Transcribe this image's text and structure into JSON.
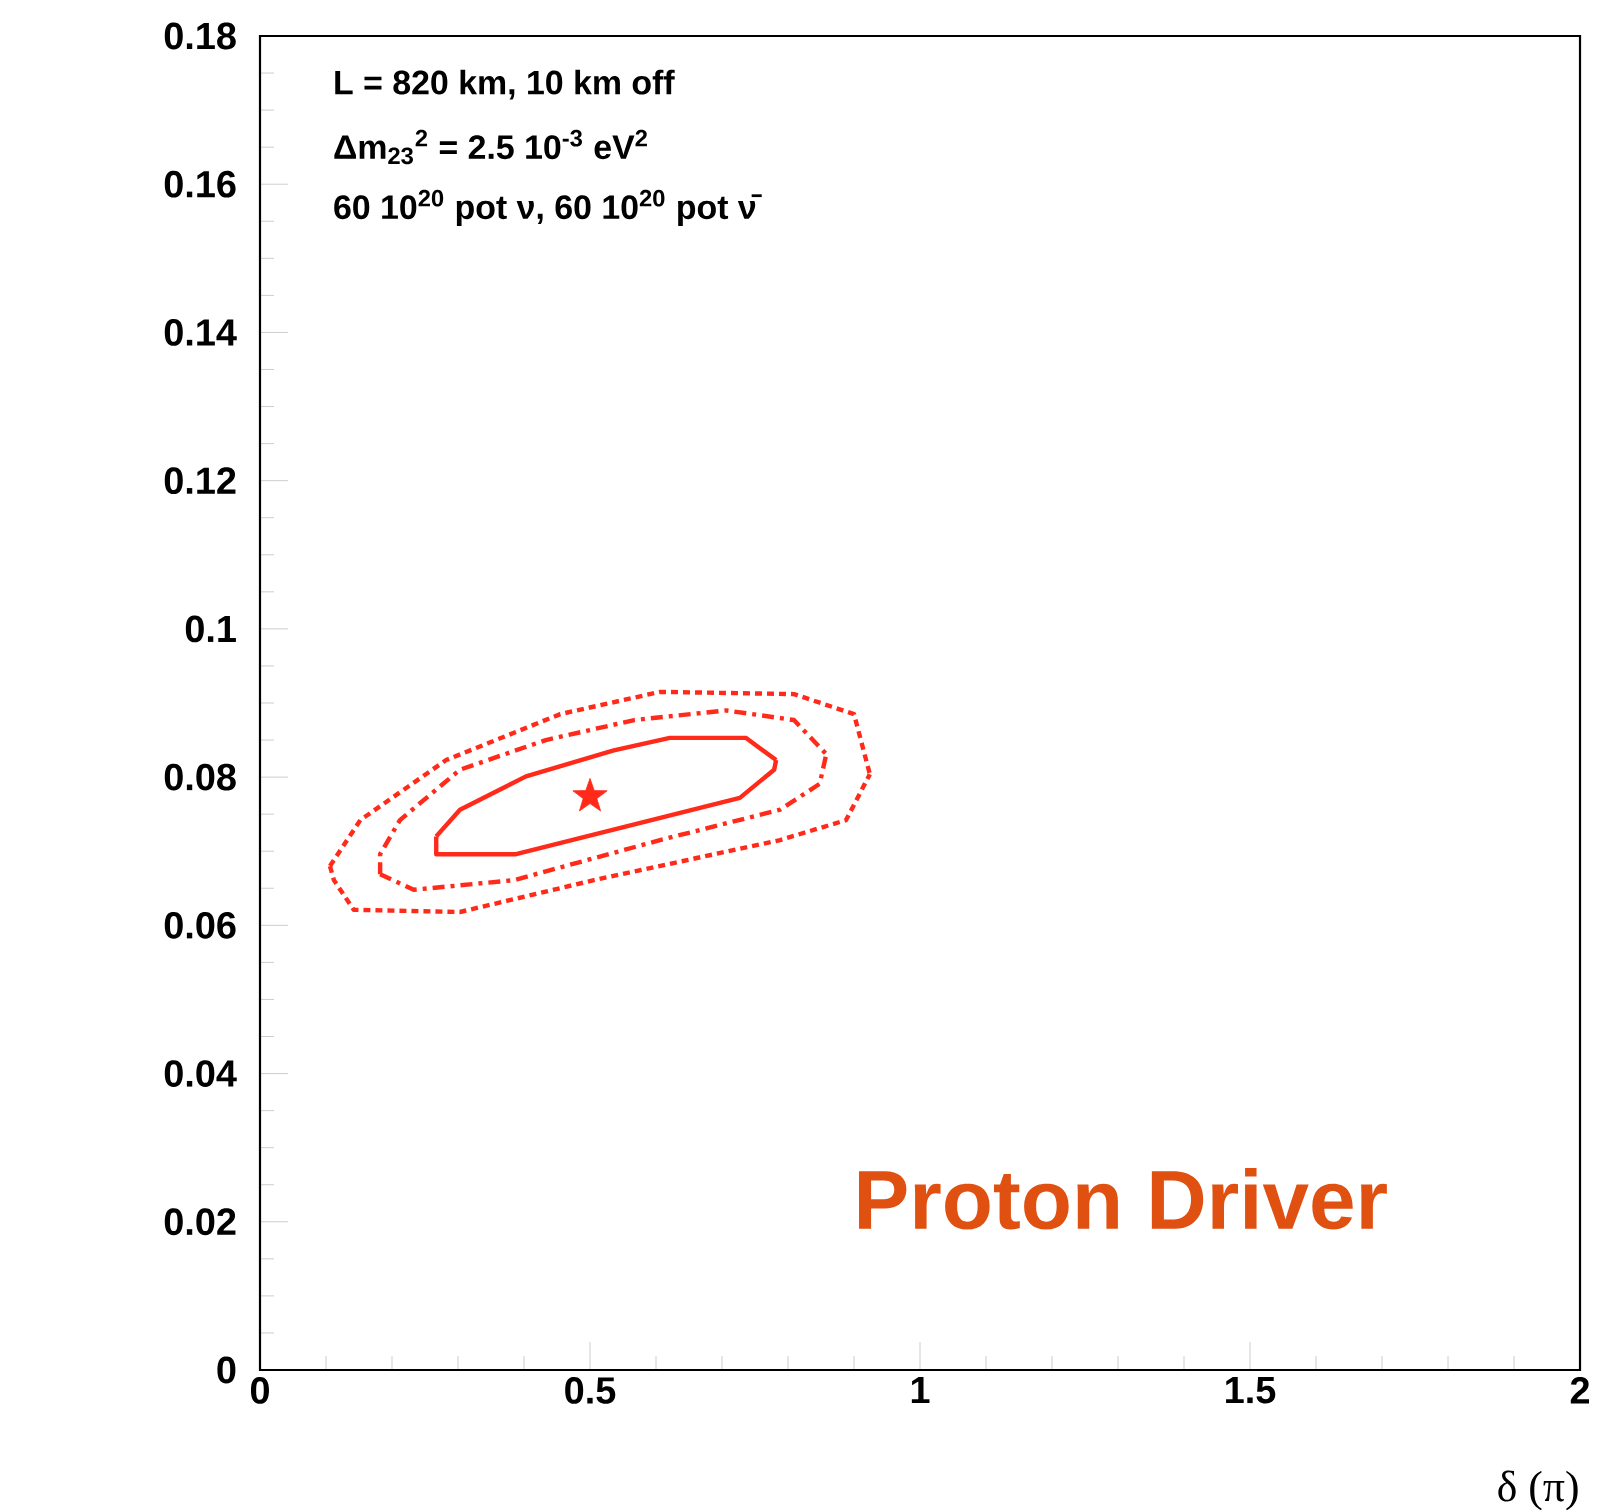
{
  "chart_data": {
    "type": "line",
    "xlabel": "δ (π)",
    "xlim": [
      0,
      2
    ],
    "xticks": [
      0,
      0.5,
      1,
      1.5,
      2
    ],
    "ylim": [
      0,
      0.18
    ],
    "yticks": [
      0,
      0.02,
      0.04,
      0.06,
      0.08,
      0.1,
      0.12,
      0.14,
      0.16,
      0.18
    ],
    "grid": false,
    "annotations": [
      "L = 820 km, 10 km off",
      "Δm$_{23}$$^{2}$ = 2.5 10$^{-3}$ eV$^{2}$",
      "60 10$^{20}$ pot ν, 60 10$^{20}$ pot ν̄",
      "Proton Driver"
    ],
    "series": [
      {
        "color": "#ff2a1a",
        "line_style": "solid",
        "marker": "none",
        "x": [
          0.267,
          0.267,
          0.388,
          0.727,
          0.779,
          0.782
        ],
        "values": [
          0.072,
          0.0696,
          0.0696,
          0.0772,
          0.081,
          0.0823
        ]
      },
      {
        "color": "#ff2a1a",
        "line_style": "solid",
        "marker": "none",
        "x": [
          0.267,
          0.303,
          0.403,
          0.536,
          0.621,
          0.736,
          0.782
        ],
        "values": [
          0.072,
          0.0756,
          0.0801,
          0.0836,
          0.0853,
          0.0853,
          0.0823
        ]
      },
      {
        "color": "#ff2a1a",
        "line_style": "dashdot",
        "marker": "none",
        "x": [
          0.182,
          0.233,
          0.385,
          0.606,
          0.788,
          0.848,
          0.858
        ],
        "values": [
          0.0669,
          0.0648,
          0.0661,
          0.0715,
          0.0756,
          0.0791,
          0.0831
        ]
      },
      {
        "color": "#ff2a1a",
        "line_style": "dashdot",
        "marker": "none",
        "x": [
          0.182,
          0.182,
          0.212,
          0.303,
          0.433,
          0.567,
          0.706,
          0.809,
          0.858
        ],
        "values": [
          0.0669,
          0.0696,
          0.0742,
          0.081,
          0.085,
          0.0877,
          0.089,
          0.0877,
          0.0831
        ]
      },
      {
        "color": "#ff2a1a",
        "line_style": "dotted",
        "marker": "none",
        "x": [
          0.106,
          0.112,
          0.142,
          0.303,
          0.506,
          0.788,
          0.888,
          0.924
        ],
        "values": [
          0.068,
          0.0661,
          0.0621,
          0.0618,
          0.0661,
          0.0715,
          0.0742,
          0.0804
        ]
      },
      {
        "color": "#ff2a1a",
        "line_style": "dotted",
        "marker": "none",
        "x": [
          0.106,
          0.152,
          0.282,
          0.455,
          0.606,
          0.809,
          0.9,
          0.924
        ],
        "values": [
          0.068,
          0.0742,
          0.0823,
          0.0885,
          0.0915,
          0.0912,
          0.0885,
          0.0804
        ]
      },
      {
        "type": "scatter",
        "color": "#ff2a1a",
        "marker": "star",
        "x": [
          0.5
        ],
        "values": [
          0.0774
        ]
      }
    ]
  }
}
